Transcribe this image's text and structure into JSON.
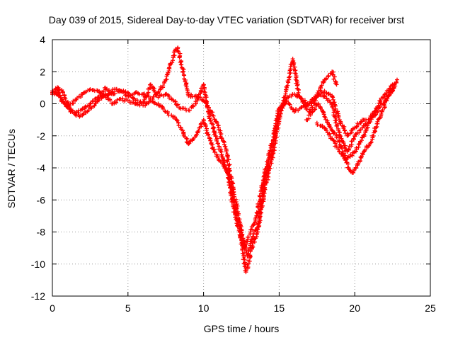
{
  "chart_data": {
    "type": "scatter",
    "title": "Day 039 of 2015, Sidereal Day-to-day VTEC variation (SDTVAR) for receiver brst",
    "xlabel": "GPS time / hours",
    "ylabel": "SDTVAR / TECUs",
    "xlim": [
      0,
      25
    ],
    "ylim": [
      -12,
      4
    ],
    "xticks": [
      0,
      5,
      10,
      15,
      20,
      25
    ],
    "yticks": [
      -12,
      -10,
      -8,
      -6,
      -4,
      -2,
      0,
      2,
      4
    ],
    "grid": true,
    "marker": "+",
    "color": "#ff0000",
    "series": [
      {
        "x": [
          0.0,
          0.3,
          0.6,
          1.0,
          1.5,
          2.0,
          2.5,
          3.0,
          3.5,
          4.0,
          4.5,
          5.0,
          5.5,
          6.0,
          6.5,
          7.0,
          7.5,
          8.0,
          8.3,
          8.7,
          9.0,
          9.5,
          10.0,
          10.5,
          11.0,
          11.5,
          12.0,
          12.5,
          12.9,
          13.2,
          13.6,
          14.0,
          14.5,
          15.0,
          15.5,
          16.0,
          16.5,
          17.0,
          17.5,
          18.0,
          18.5,
          19.0,
          19.5,
          20.0,
          20.5,
          21.0,
          21.5,
          22.0,
          22.5,
          22.8
        ],
        "y": [
          0.6,
          0.9,
          0.2,
          -0.2,
          0.2,
          0.6,
          0.9,
          0.8,
          0.4,
          0.9,
          0.8,
          0.5,
          0.7,
          0.6,
          0.3,
          0.7,
          1.5,
          3.0,
          3.5,
          1.8,
          0.5,
          0.5,
          0.2,
          -0.5,
          -1.5,
          -3.0,
          -5.5,
          -8.0,
          -9.5,
          -8.5,
          -7.5,
          -5.0,
          -3.0,
          -0.5,
          0.3,
          0.6,
          0.3,
          0.0,
          0.5,
          0.8,
          0.5,
          -1.0,
          -2.0,
          -1.5,
          -1.0,
          -1.0,
          -0.5,
          0.2,
          0.8,
          1.5
        ]
      },
      {
        "x": [
          0.0,
          0.4,
          0.8,
          1.2,
          1.8,
          2.4,
          3.0,
          3.5,
          4.0,
          4.5,
          5.0,
          5.5,
          6.0,
          6.5,
          7.0,
          7.5,
          8.0,
          8.5,
          9.0,
          9.5,
          10.0,
          10.5,
          11.0,
          11.5,
          12.0,
          12.5,
          12.8,
          13.2,
          13.6,
          14.0,
          14.5,
          15.0,
          15.5,
          15.9,
          16.3,
          17.0,
          17.5,
          18.0,
          18.5,
          18.8
        ],
        "y": [
          0.8,
          1.0,
          0.5,
          -0.5,
          -0.8,
          -0.4,
          0.2,
          0.6,
          0.0,
          0.3,
          0.2,
          0.0,
          -0.1,
          0.2,
          0.0,
          -0.5,
          -0.8,
          -1.5,
          -2.5,
          -2.0,
          -1.0,
          -2.5,
          -3.5,
          -4.0,
          -6.5,
          -8.5,
          -10.5,
          -9.0,
          -8.0,
          -5.5,
          -3.5,
          -1.0,
          1.0,
          2.8,
          0.5,
          -0.5,
          0.5,
          1.5,
          2.0,
          1.2
        ]
      },
      {
        "x": [
          0.0,
          0.5,
          1.0,
          1.5,
          2.0,
          2.5,
          3.0,
          3.5,
          4.0,
          4.5,
          5.0,
          5.5,
          6.0,
          6.5,
          7.0,
          7.5,
          8.0,
          8.5,
          9.0,
          9.5,
          10.0,
          10.3,
          10.8,
          11.3,
          11.8,
          12.3,
          12.7,
          13.1,
          13.5,
          14.0,
          14.5,
          15.0,
          15.5,
          16.0,
          16.5,
          17.0,
          17.5,
          18.0,
          18.5,
          19.0,
          19.5,
          20.0,
          20.5,
          21.0,
          21.5,
          22.0,
          22.5
        ],
        "y": [
          0.7,
          0.5,
          -0.2,
          -0.6,
          -0.3,
          0.0,
          0.4,
          1.0,
          0.6,
          0.8,
          0.7,
          0.2,
          0.0,
          1.2,
          0.4,
          0.6,
          0.2,
          -0.3,
          -0.4,
          0.0,
          1.2,
          -0.5,
          -2.0,
          -3.5,
          -5.0,
          -7.5,
          -9.0,
          -8.0,
          -7.0,
          -4.5,
          -2.5,
          -0.3,
          0.2,
          -0.5,
          -0.2,
          0.0,
          0.5,
          0.5,
          0.0,
          -2.0,
          -3.0,
          -2.0,
          -1.5,
          -1.0,
          -0.2,
          0.6,
          1.2
        ]
      },
      {
        "x": [
          16.8,
          17.2,
          17.6,
          18.0,
          18.4,
          18.8,
          19.2,
          19.6,
          19.9,
          20.2,
          20.6,
          21.0,
          21.4,
          21.8,
          22.2,
          22.6
        ],
        "y": [
          -1.0,
          -0.5,
          0.0,
          -0.8,
          -1.5,
          -2.0,
          -3.0,
          -4.0,
          -4.3,
          -3.8,
          -3.0,
          -2.5,
          -1.5,
          -0.5,
          0.5,
          1.0
        ]
      },
      {
        "x": [
          17.5,
          18.0,
          18.5,
          19.0,
          19.4,
          19.7,
          20.0,
          20.3,
          20.7,
          21.0,
          21.3
        ],
        "y": [
          -1.2,
          -1.5,
          -2.2,
          -3.0,
          -3.5,
          -3.3,
          -3.0,
          -2.5,
          -1.8,
          -1.0,
          -0.5
        ]
      }
    ]
  }
}
